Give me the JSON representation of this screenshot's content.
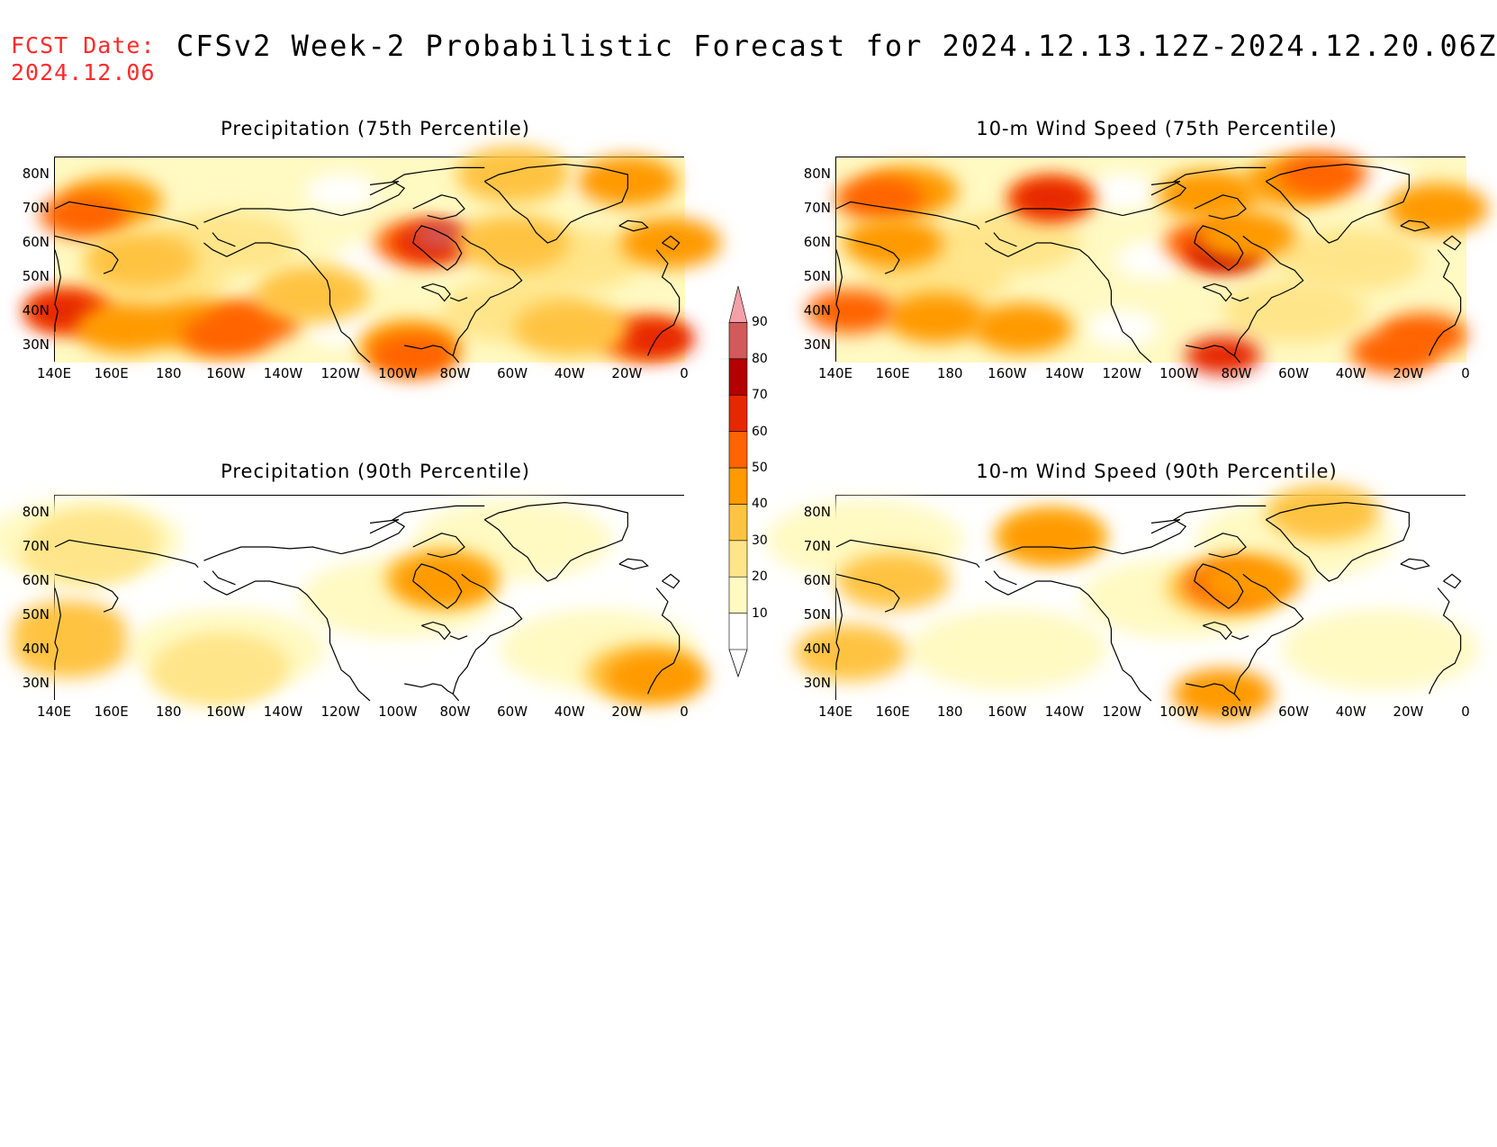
{
  "header": {
    "fcst_label": "FCST Date:",
    "fcst_date": "2024.12.06",
    "title": "CFSv2 Week-2 Probabilistic Forecast for 2024.12.13.12Z-2024.12.20.06Z"
  },
  "axes": {
    "lat_ticks": [
      "80N",
      "70N",
      "60N",
      "50N",
      "40N",
      "30N"
    ],
    "lon_ticks": [
      "140E",
      "160E",
      "180",
      "160W",
      "140W",
      "120W",
      "100W",
      "80W",
      "60W",
      "40W",
      "20W",
      "0"
    ]
  },
  "colorbar": {
    "levels": [
      "10",
      "20",
      "30",
      "40",
      "50",
      "60",
      "70",
      "80",
      "90"
    ],
    "colors": [
      "#fff9c2",
      "#ffe58a",
      "#ffc342",
      "#ff9a00",
      "#ff6400",
      "#e62800",
      "#b40000",
      "#d25a5a",
      "#f4a0a8",
      "#ffe6ea"
    ]
  },
  "panels": [
    {
      "id": "precip-75",
      "title": "Precipitation (75th Percentile)",
      "blobs": [
        {
          "lon": 160,
          "lat": 72,
          "level": 3
        },
        {
          "lon": 150,
          "lat": 68,
          "level": 4
        },
        {
          "lon": 145,
          "lat": 40,
          "level": 4
        },
        {
          "lon": 143,
          "lat": 40,
          "level": 5
        },
        {
          "lon": 165,
          "lat": 35,
          "level": 3
        },
        {
          "lon": 190,
          "lat": 36,
          "level": 3
        },
        {
          "lon": 210,
          "lat": 37,
          "level": 4
        },
        {
          "lon": 200,
          "lat": 33,
          "level": 4
        },
        {
          "lon": 230,
          "lat": 45,
          "level": 2
        },
        {
          "lon": 170,
          "lat": 55,
          "level": 2
        },
        {
          "lon": 267,
          "lat": 60,
          "level": 4
        },
        {
          "lon": 272,
          "lat": 60,
          "level": 5
        },
        {
          "lon": 274,
          "lat": 62,
          "level": 7
        },
        {
          "lon": 264,
          "lat": 30,
          "level": 3
        },
        {
          "lon": 265,
          "lat": 27,
          "level": 4
        },
        {
          "lon": 300,
          "lat": 60,
          "level": 2
        },
        {
          "lon": 345,
          "lat": 32,
          "level": 4
        },
        {
          "lon": 350,
          "lat": 32,
          "level": 5
        },
        {
          "lon": 340,
          "lat": 78,
          "level": 3
        },
        {
          "lon": 355,
          "lat": 60,
          "level": 3
        },
        {
          "lon": 300,
          "lat": 80,
          "level": 2
        },
        {
          "lon": 320,
          "lat": 35,
          "level": 2
        }
      ],
      "bg_level": 1
    },
    {
      "id": "wind-75",
      "title": "10-m Wind Speed (75th Percentile)",
      "blobs": [
        {
          "lon": 165,
          "lat": 75,
          "level": 3
        },
        {
          "lon": 155,
          "lat": 73,
          "level": 4
        },
        {
          "lon": 215,
          "lat": 73,
          "level": 4
        },
        {
          "lon": 215,
          "lat": 73,
          "level": 5
        },
        {
          "lon": 175,
          "lat": 38,
          "level": 3
        },
        {
          "lon": 205,
          "lat": 35,
          "level": 3
        },
        {
          "lon": 145,
          "lat": 40,
          "level": 4
        },
        {
          "lon": 270,
          "lat": 60,
          "level": 4
        },
        {
          "lon": 275,
          "lat": 57,
          "level": 5
        },
        {
          "lon": 277,
          "lat": 58,
          "level": 6
        },
        {
          "lon": 283,
          "lat": 62,
          "level": 3
        },
        {
          "lon": 300,
          "lat": 78,
          "level": 3
        },
        {
          "lon": 310,
          "lat": 80,
          "level": 4
        },
        {
          "lon": 270,
          "lat": 74,
          "level": 3
        },
        {
          "lon": 345,
          "lat": 33,
          "level": 4
        },
        {
          "lon": 335,
          "lat": 28,
          "level": 4
        },
        {
          "lon": 275,
          "lat": 27,
          "level": 5
        },
        {
          "lon": 350,
          "lat": 70,
          "level": 3
        },
        {
          "lon": 160,
          "lat": 60,
          "level": 3
        }
      ],
      "bg_level": 1
    },
    {
      "id": "precip-90",
      "title": "Precipitation (90th Percentile)",
      "blobs": [
        {
          "lon": 155,
          "lat": 72,
          "level": 1
        },
        {
          "lon": 150,
          "lat": 68,
          "level": 1
        },
        {
          "lon": 145,
          "lat": 40,
          "level": 2
        },
        {
          "lon": 145,
          "lat": 46,
          "level": 2
        },
        {
          "lon": 275,
          "lat": 61,
          "level": 2
        },
        {
          "lon": 276,
          "lat": 60,
          "level": 3
        },
        {
          "lon": 345,
          "lat": 33,
          "level": 2
        },
        {
          "lon": 350,
          "lat": 32,
          "level": 3
        },
        {
          "lon": 200,
          "lat": 35,
          "level": 1
        },
        {
          "lon": 195,
          "lat": 33,
          "level": 1
        }
      ],
      "bg_level": 0
    },
    {
      "id": "wind-90",
      "title": "10-m Wind Speed (90th Percentile)",
      "blobs": [
        {
          "lon": 215,
          "lat": 73,
          "level": 2
        },
        {
          "lon": 215,
          "lat": 73,
          "level": 3
        },
        {
          "lon": 275,
          "lat": 58,
          "level": 2
        },
        {
          "lon": 277,
          "lat": 59,
          "level": 4
        },
        {
          "lon": 285,
          "lat": 60,
          "level": 3
        },
        {
          "lon": 145,
          "lat": 39,
          "level": 2
        },
        {
          "lon": 310,
          "lat": 80,
          "level": 2
        },
        {
          "lon": 275,
          "lat": 27,
          "level": 3
        },
        {
          "lon": 160,
          "lat": 60,
          "level": 2
        }
      ],
      "bg_level": 0
    }
  ]
}
